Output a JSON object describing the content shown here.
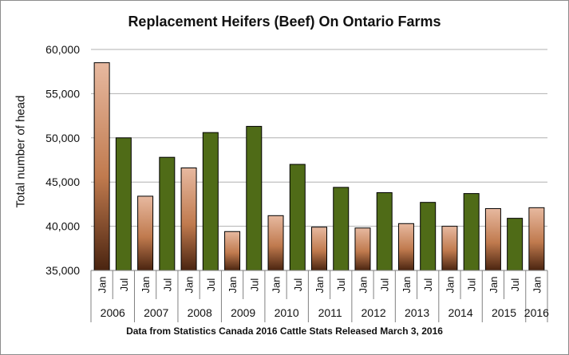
{
  "chart_data": {
    "type": "bar",
    "title": "Replacement Heifers (Beef) On Ontario Farms",
    "ylabel": "Total number of head",
    "xlabel": "",
    "source_note": "Data from Statistics Canada 2016 Cattle Stats  Released March 3, 2016",
    "ylim": [
      35000,
      60000
    ],
    "yticks": [
      35000,
      40000,
      45000,
      50000,
      55000,
      60000
    ],
    "ytick_labels": [
      "35,000",
      "40,000",
      "45,000",
      "50,000",
      "55,000",
      "60,000"
    ],
    "grid": true,
    "categories": [
      {
        "month": "Jan",
        "year": "2006"
      },
      {
        "month": "Jul",
        "year": "2006"
      },
      {
        "month": "Jan",
        "year": "2007"
      },
      {
        "month": "Jul",
        "year": "2007"
      },
      {
        "month": "Jan",
        "year": "2008"
      },
      {
        "month": "Jul",
        "year": "2008"
      },
      {
        "month": "Jan",
        "year": "2009"
      },
      {
        "month": "Jul",
        "year": "2009"
      },
      {
        "month": "Jan",
        "year": "2010"
      },
      {
        "month": "Jul",
        "year": "2010"
      },
      {
        "month": "Jan",
        "year": "2011"
      },
      {
        "month": "Jul",
        "year": "2011"
      },
      {
        "month": "Jan",
        "year": "2012"
      },
      {
        "month": "Jul",
        "year": "2012"
      },
      {
        "month": "Jan",
        "year": "2013"
      },
      {
        "month": "Jul",
        "year": "2013"
      },
      {
        "month": "Jan",
        "year": "2014"
      },
      {
        "month": "Jul",
        "year": "2014"
      },
      {
        "month": "Jan",
        "year": "2015"
      },
      {
        "month": "Jul",
        "year": "2015"
      },
      {
        "month": "Jan",
        "year": "2016"
      }
    ],
    "years": [
      "2006",
      "2007",
      "2008",
      "2009",
      "2010",
      "2011",
      "2012",
      "2013",
      "2014",
      "2015",
      "2016"
    ],
    "values": [
      58500,
      50000,
      43400,
      47800,
      46600,
      50600,
      39400,
      51300,
      41200,
      47000,
      39900,
      44400,
      39800,
      43800,
      40300,
      42700,
      40000,
      43700,
      42000,
      40900,
      42100
    ],
    "colors": {
      "jan_top": "#e7b9a0",
      "jan_mid": "#c07a4e",
      "jan_bottom": "#4a2410",
      "jul": "#4f6b17",
      "bar_outline": "#000000",
      "grid": "#b0b0b0"
    }
  }
}
